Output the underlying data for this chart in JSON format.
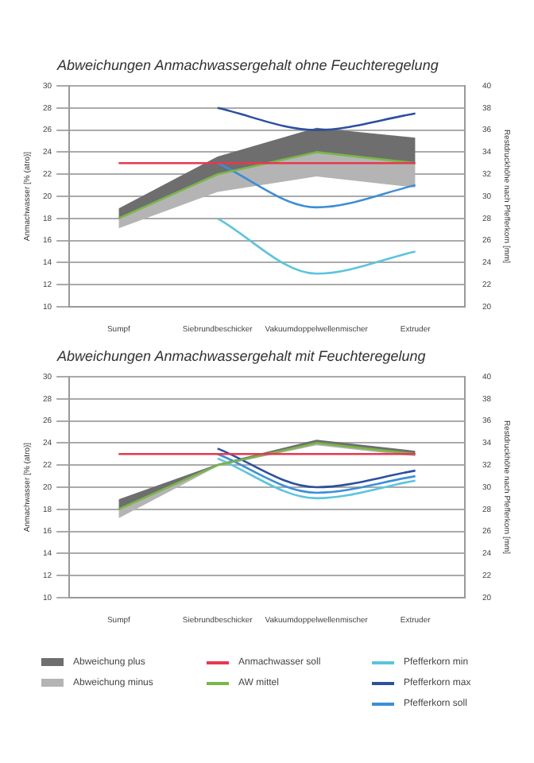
{
  "chart_data": [
    {
      "type": "line",
      "title": "Abweichungen Anmachwassergehalt ohne Feuchteregelung",
      "ylabel": "Anmachwasser [% (atro)]",
      "y2label": "Restdruckhöhe nach Pfefferkorn [mm]",
      "categories": [
        "Sumpf",
        "Siebrundbeschicker",
        "Vakuumdoppelwellenmischer",
        "Extruder"
      ],
      "ylim": [
        10,
        30
      ],
      "yticks": [
        10,
        12,
        14,
        16,
        18,
        20,
        22,
        24,
        26,
        28,
        30
      ],
      "y2lim": [
        20,
        40
      ],
      "y2ticks": [
        20,
        22,
        24,
        26,
        28,
        30,
        32,
        34,
        36,
        38,
        40
      ],
      "grid": "y",
      "series": [
        {
          "type": "line",
          "color": "#6e6e6e",
          "values": [
            null,
            null,
            null,
            null
          ],
          "lower": [
            18,
            22,
            24,
            23
          ],
          "upper": [
            18.9,
            23.6,
            26.2,
            25.3
          ]
        },
        {
          "type": "line",
          "color": "#b4b4b4",
          "values": [
            null,
            null,
            null,
            null
          ],
          "lower": [
            17.1,
            20.4,
            21.8,
            20.8
          ],
          "upper": [
            18,
            22,
            24,
            23
          ]
        },
        {
          "type": "line",
          "color": "#e8384f",
          "values": [
            23,
            23,
            23,
            23
          ]
        },
        {
          "type": "line",
          "color": "#7ab648",
          "values": [
            18,
            22,
            24,
            23
          ]
        },
        {
          "type": "line",
          "axis": "y2",
          "color": "#5bc4de",
          "values": [
            null,
            28,
            23,
            25
          ]
        },
        {
          "type": "line",
          "axis": "y2",
          "color": "#2c4f9e",
          "values": [
            null,
            38,
            36,
            37.5
          ]
        },
        {
          "type": "line",
          "axis": "y2",
          "color": "#3b8fd6",
          "values": [
            null,
            33,
            29,
            31
          ]
        }
      ]
    },
    {
      "type": "line",
      "title": "Abweichungen Anmachwassergehalt mit Feuchteregelung",
      "ylabel": "Anmachwasser [% (atro)]",
      "y2label": "Restdruckhöhe nach Pfefferkorn [mm]",
      "categories": [
        "Sumpf",
        "Siebrundbeschicker",
        "Vakuumdoppelwellenmischer",
        "Extruder"
      ],
      "ylim": [
        10,
        30
      ],
      "yticks": [
        10,
        12,
        14,
        16,
        18,
        20,
        22,
        24,
        26,
        28,
        30
      ],
      "y2lim": [
        20,
        40
      ],
      "y2ticks": [
        20,
        22,
        24,
        26,
        28,
        30,
        32,
        34,
        36,
        38,
        40
      ],
      "grid": "y",
      "legend": "bottom",
      "series": [
        {
          "name": "Abweichung plus",
          "type": "line",
          "color": "#6e6e6e",
          "values": [
            null,
            null,
            null,
            null
          ],
          "lower": [
            18,
            22,
            24,
            23
          ],
          "upper": [
            18.9,
            22.1,
            24.3,
            23.3
          ]
        },
        {
          "name": "Abweichung minus",
          "type": "line",
          "color": "#b4b4b4",
          "values": [
            null,
            null,
            null,
            null
          ],
          "lower": [
            17.2,
            21.9,
            23.8,
            22.8
          ],
          "upper": [
            18,
            22,
            24,
            23
          ]
        },
        {
          "name": "Anmachwasser soll",
          "type": "line",
          "color": "#e8384f",
          "values": [
            23,
            23,
            23,
            23
          ]
        },
        {
          "name": "AW mittel",
          "type": "line",
          "color": "#7ab648",
          "values": [
            18,
            22,
            24,
            23
          ]
        },
        {
          "name": "Pfefferkorn min",
          "type": "line",
          "axis": "y2",
          "color": "#5bc4de",
          "values": [
            null,
            32.6,
            29,
            30.6
          ]
        },
        {
          "name": "Pfefferkorn max",
          "type": "line",
          "axis": "y2",
          "color": "#2c4f9e",
          "values": [
            null,
            33.5,
            30,
            31.5
          ]
        },
        {
          "name": "Pfefferkorn soll",
          "type": "line",
          "axis": "y2",
          "color": "#3b8fd6",
          "values": [
            null,
            33,
            29.5,
            31
          ]
        }
      ]
    }
  ]
}
